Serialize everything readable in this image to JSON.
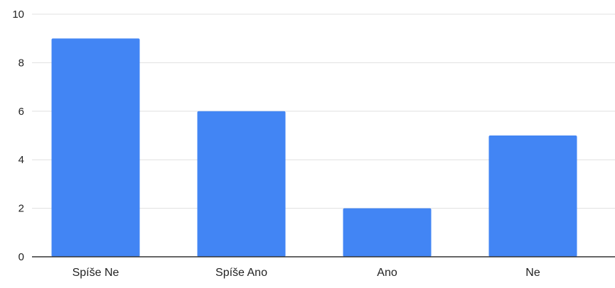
{
  "chart_data": {
    "type": "bar",
    "categories": [
      "Spíše Ne",
      "Spíše Ano",
      "Ano",
      "Ne"
    ],
    "values": [
      9,
      6,
      2,
      5
    ],
    "ylim": [
      0,
      10
    ],
    "yticks": [
      0,
      2,
      4,
      6,
      8,
      10
    ],
    "grid": true,
    "legend": "none",
    "title": "",
    "xlabel": "",
    "ylabel": "",
    "colors": {
      "bar": "#4285f4",
      "grid": "#e0e0e0",
      "axis": "#333333",
      "text": "#222222"
    }
  }
}
